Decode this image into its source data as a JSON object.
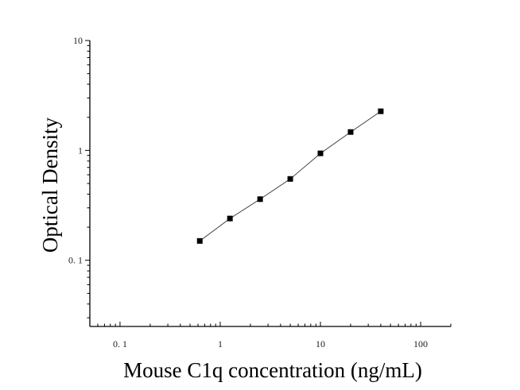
{
  "chart_data": {
    "type": "scatter",
    "title": "",
    "xlabel": "Mouse C1q concentration (ng/mL)",
    "ylabel": "Optical Density",
    "x_scale": "log",
    "y_scale": "log",
    "xlim": [
      0.05,
      200
    ],
    "ylim": [
      0.025,
      10
    ],
    "x_ticks": [
      0.1,
      1,
      10,
      100
    ],
    "x_tick_labels": [
      "0. 1",
      "1",
      "10",
      "100"
    ],
    "y_ticks": [
      0.1,
      1,
      10
    ],
    "y_tick_labels": [
      "0. 1",
      "1",
      "10"
    ],
    "grid": false,
    "legend": "none",
    "series": [
      {
        "x": [
          0.625,
          1.25,
          2.5,
          5,
          10,
          20,
          40
        ],
        "y": [
          0.15,
          0.24,
          0.36,
          0.55,
          0.94,
          1.47,
          2.27
        ],
        "marker": "square",
        "color": "#000000",
        "fit_line": true
      }
    ]
  }
}
